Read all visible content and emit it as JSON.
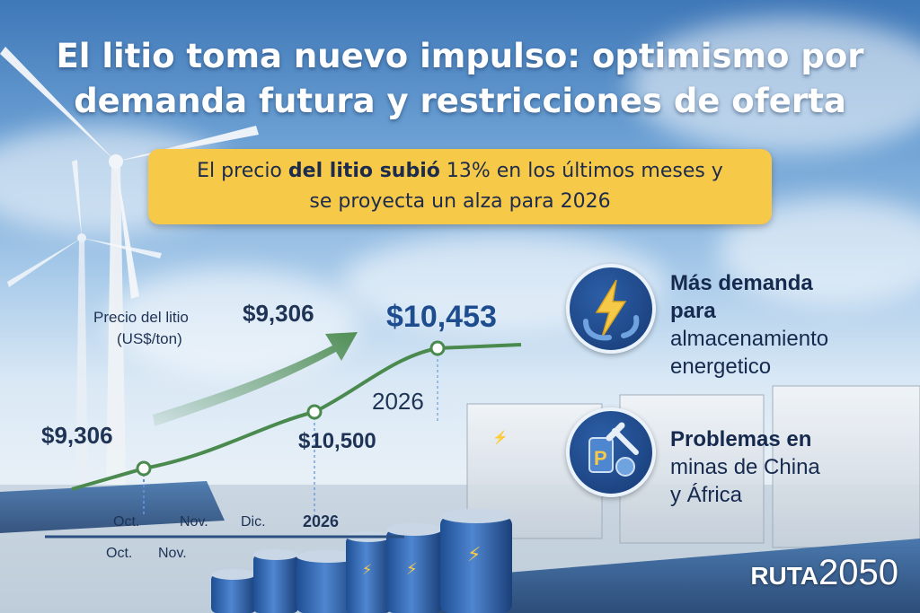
{
  "headline": {
    "line1": "El litio toma nuevo impulso: optimismo por",
    "line2": "demanda futura y restricciones de oferta"
  },
  "callout": {
    "part1": "El precio",
    "bold": "del litio subió",
    "part2": "13% en los últimos meses y",
    "line2": "se proyecta un alza para 2026"
  },
  "features": [
    {
      "icon": "lightning-icon",
      "bold1": "Más demanda",
      "bold2": "para",
      "line3": "almacenamiento",
      "line4": "energetico"
    },
    {
      "icon": "mining-tools-icon",
      "bold1": "Problemas en",
      "line2": "minas de China",
      "line3": "y África"
    }
  ],
  "brand": {
    "part1": "RUTA",
    "part2": "2050"
  },
  "colors": {
    "line": "#4a8a4e",
    "callout": "#f7c948",
    "navy": "#173a74"
  },
  "chart_data": {
    "type": "line",
    "ylabel": "Precio del litio",
    "yunit": "(US$/ton)",
    "x_labels_row1": [
      "Oct.",
      "Nov.",
      "Dic.",
      "2026"
    ],
    "x_labels_row2": [
      "Oct.",
      "Nov."
    ],
    "points": [
      {
        "label": "$9,306",
        "value": 9306
      },
      {
        "label": "$10,500",
        "value": 10500
      },
      {
        "label": "$10,453",
        "value": 10453
      }
    ],
    "annotations": {
      "upper_value": "$9,306",
      "year": "2026"
    }
  }
}
